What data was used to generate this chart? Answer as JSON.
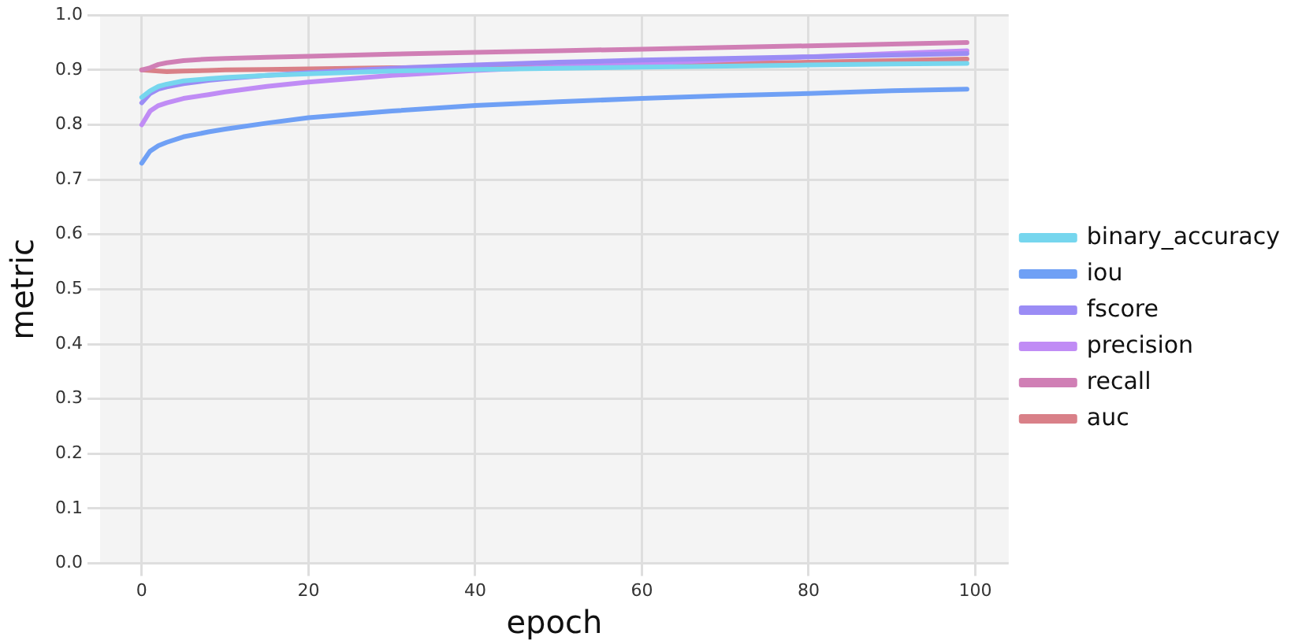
{
  "chart_data": {
    "type": "line",
    "xlabel": "epoch",
    "ylabel": "metric",
    "x": [
      0,
      1,
      2,
      3,
      5,
      8,
      10,
      15,
      20,
      30,
      40,
      50,
      60,
      70,
      80,
      90,
      99
    ],
    "series": [
      {
        "name": "binary_accuracy",
        "color": "#76d6ee",
        "values": [
          0.85,
          0.862,
          0.87,
          0.874,
          0.88,
          0.884,
          0.886,
          0.89,
          0.893,
          0.898,
          0.901,
          0.903,
          0.905,
          0.907,
          0.909,
          0.911,
          0.912
        ]
      },
      {
        "name": "iou",
        "color": "#6fa0f5",
        "values": [
          0.73,
          0.752,
          0.762,
          0.768,
          0.778,
          0.787,
          0.792,
          0.803,
          0.813,
          0.825,
          0.835,
          0.842,
          0.848,
          0.853,
          0.857,
          0.862,
          0.865
        ]
      },
      {
        "name": "fscore",
        "color": "#9b8cf5",
        "values": [
          0.84,
          0.857,
          0.865,
          0.869,
          0.875,
          0.881,
          0.884,
          0.89,
          0.895,
          0.903,
          0.909,
          0.914,
          0.918,
          0.921,
          0.924,
          0.927,
          0.93
        ]
      },
      {
        "name": "precision",
        "color": "#c08cf5",
        "values": [
          0.8,
          0.825,
          0.835,
          0.84,
          0.848,
          0.855,
          0.86,
          0.87,
          0.878,
          0.89,
          0.899,
          0.906,
          0.912,
          0.918,
          0.924,
          0.93,
          0.935
        ]
      },
      {
        "name": "recall",
        "color": "#d07fb5",
        "values": [
          0.9,
          0.904,
          0.91,
          0.913,
          0.917,
          0.92,
          0.921,
          0.923,
          0.925,
          0.929,
          0.932,
          0.935,
          0.938,
          0.941,
          0.944,
          0.947,
          0.95
        ]
      },
      {
        "name": "auc",
        "color": "#d98088",
        "values": [
          0.9,
          0.899,
          0.898,
          0.897,
          0.898,
          0.899,
          0.9,
          0.901,
          0.902,
          0.904,
          0.906,
          0.908,
          0.91,
          0.912,
          0.914,
          0.917,
          0.92
        ]
      }
    ],
    "xlim": [
      -5,
      104
    ],
    "xticks": [
      0,
      20,
      40,
      60,
      80,
      100
    ],
    "ylim": [
      0,
      1
    ],
    "yticks": [
      {
        "value": 0,
        "label": "0.0"
      },
      {
        "value": 0.1,
        "label": "0.1"
      },
      {
        "value": 0.2,
        "label": "0.2"
      },
      {
        "value": 0.3,
        "label": "0.3"
      },
      {
        "value": 0.4,
        "label": "0.4"
      },
      {
        "value": 0.5,
        "label": "0.5"
      },
      {
        "value": 0.6,
        "label": "0.6"
      },
      {
        "value": 0.7,
        "label": "0.7"
      },
      {
        "value": 0.8,
        "label": "0.8"
      },
      {
        "value": 0.9,
        "label": "0.9"
      },
      {
        "value": 1,
        "label": "1.0"
      }
    ],
    "grid": true,
    "legend": "right",
    "marker": "none",
    "line_style": "solid"
  }
}
